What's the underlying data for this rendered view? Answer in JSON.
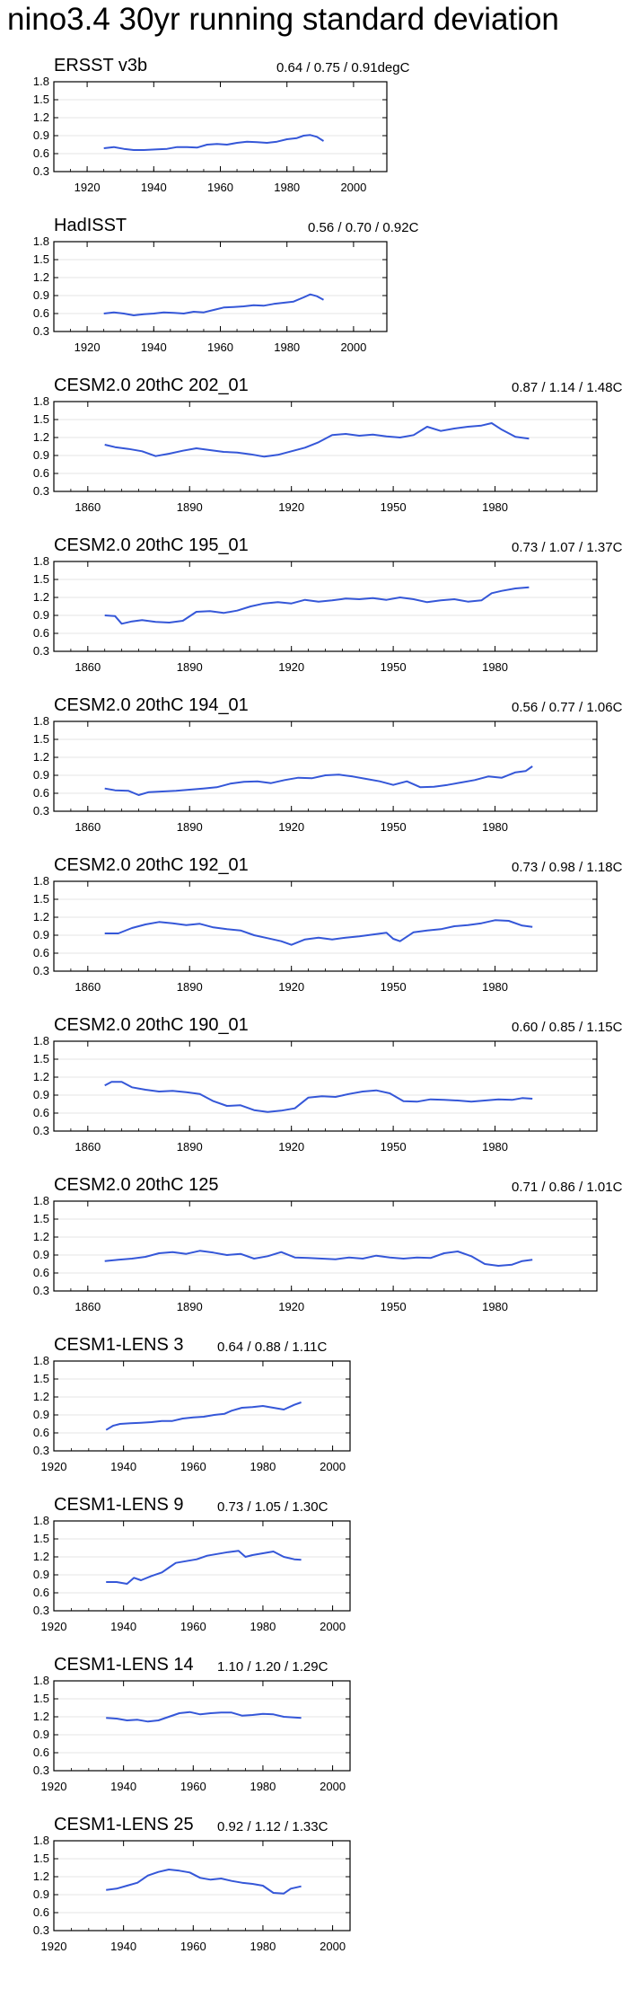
{
  "title": "nino3.4 30yr running standard deviation",
  "colors": {
    "line": "#3557d8",
    "grid": "#e4e4e4",
    "axis": "#000000"
  },
  "chart_data": [
    {
      "type": "line",
      "title": "ERSST v3b",
      "stats": "0.64 / 0.75 / 0.91degC",
      "xlim": [
        1910,
        2010
      ],
      "ylim": [
        0.3,
        1.8
      ],
      "x_ticks": [
        1920,
        1940,
        1960,
        1980,
        2000
      ],
      "y_ticks": [
        0.3,
        0.6,
        0.9,
        1.2,
        1.5,
        1.8
      ],
      "series": [
        {
          "name": "ERSST v3b",
          "x": [
            1925,
            1928,
            1931,
            1934,
            1937,
            1941,
            1944,
            1947,
            1950,
            1953,
            1956,
            1959,
            1962,
            1965,
            1968,
            1971,
            1974,
            1977,
            1980,
            1983,
            1985,
            1987,
            1989,
            1991
          ],
          "values": [
            0.69,
            0.71,
            0.68,
            0.66,
            0.66,
            0.67,
            0.68,
            0.71,
            0.71,
            0.7,
            0.75,
            0.76,
            0.75,
            0.78,
            0.8,
            0.79,
            0.78,
            0.8,
            0.84,
            0.86,
            0.9,
            0.91,
            0.88,
            0.81
          ]
        }
      ]
    },
    {
      "type": "line",
      "title": "HadISST",
      "stats": "0.56 / 0.70 / 0.92C",
      "xlim": [
        1910,
        2010
      ],
      "ylim": [
        0.3,
        1.8
      ],
      "x_ticks": [
        1920,
        1940,
        1960,
        1980,
        2000
      ],
      "y_ticks": [
        0.3,
        0.6,
        0.9,
        1.2,
        1.5,
        1.8
      ],
      "series": [
        {
          "name": "HadISST",
          "x": [
            1925,
            1928,
            1931,
            1934,
            1937,
            1940,
            1943,
            1946,
            1949,
            1952,
            1955,
            1958,
            1961,
            1964,
            1967,
            1970,
            1973,
            1976,
            1979,
            1982,
            1985,
            1987,
            1989,
            1991
          ],
          "values": [
            0.6,
            0.62,
            0.6,
            0.57,
            0.59,
            0.6,
            0.62,
            0.61,
            0.6,
            0.63,
            0.62,
            0.66,
            0.7,
            0.71,
            0.72,
            0.74,
            0.73,
            0.76,
            0.78,
            0.8,
            0.87,
            0.92,
            0.89,
            0.83
          ]
        }
      ]
    },
    {
      "type": "line",
      "title": "CESM2.0 20thC 202_01",
      "stats": "0.87 / 1.14 / 1.48C",
      "xlim": [
        1850,
        2010
      ],
      "ylim": [
        0.3,
        1.8
      ],
      "x_ticks": [
        1860,
        1890,
        1920,
        1950,
        1980
      ],
      "y_ticks": [
        0.3,
        0.6,
        0.9,
        1.2,
        1.5,
        1.8
      ],
      "series": [
        {
          "name": "202_01",
          "x": [
            1865,
            1868,
            1872,
            1876,
            1880,
            1884,
            1888,
            1892,
            1896,
            1900,
            1904,
            1908,
            1912,
            1916,
            1920,
            1924,
            1928,
            1932,
            1936,
            1940,
            1944,
            1948,
            1952,
            1956,
            1960,
            1964,
            1968,
            1972,
            1976,
            1979,
            1982,
            1986,
            1990
          ],
          "values": [
            1.08,
            1.04,
            1.01,
            0.97,
            0.89,
            0.93,
            0.98,
            1.02,
            0.99,
            0.96,
            0.95,
            0.92,
            0.88,
            0.91,
            0.97,
            1.03,
            1.12,
            1.24,
            1.26,
            1.23,
            1.25,
            1.22,
            1.2,
            1.24,
            1.38,
            1.31,
            1.35,
            1.38,
            1.4,
            1.44,
            1.33,
            1.21,
            1.18
          ]
        }
      ]
    },
    {
      "type": "line",
      "title": "CESM2.0 20thC 195_01",
      "stats": "0.73 / 1.07 / 1.37C",
      "xlim": [
        1850,
        2010
      ],
      "ylim": [
        0.3,
        1.8
      ],
      "x_ticks": [
        1860,
        1890,
        1920,
        1950,
        1980
      ],
      "y_ticks": [
        0.3,
        0.6,
        0.9,
        1.2,
        1.5,
        1.8
      ],
      "series": [
        {
          "name": "195_01",
          "x": [
            1865,
            1868,
            1870,
            1873,
            1876,
            1880,
            1884,
            1888,
            1892,
            1896,
            1900,
            1904,
            1908,
            1912,
            1916,
            1920,
            1924,
            1928,
            1932,
            1936,
            1940,
            1944,
            1948,
            1952,
            1956,
            1960,
            1964,
            1968,
            1972,
            1976,
            1979,
            1982,
            1986,
            1990
          ],
          "values": [
            0.9,
            0.89,
            0.76,
            0.8,
            0.82,
            0.79,
            0.78,
            0.81,
            0.96,
            0.97,
            0.94,
            0.98,
            1.05,
            1.1,
            1.12,
            1.1,
            1.16,
            1.13,
            1.15,
            1.18,
            1.17,
            1.19,
            1.16,
            1.2,
            1.17,
            1.12,
            1.15,
            1.17,
            1.13,
            1.15,
            1.27,
            1.31,
            1.35,
            1.37
          ]
        }
      ]
    },
    {
      "type": "line",
      "title": "CESM2.0 20thC 194_01",
      "stats": "0.56 / 0.77 / 1.06C",
      "xlim": [
        1850,
        2010
      ],
      "ylim": [
        0.3,
        1.8
      ],
      "x_ticks": [
        1860,
        1890,
        1920,
        1950,
        1980
      ],
      "y_ticks": [
        0.3,
        0.6,
        0.9,
        1.2,
        1.5,
        1.8
      ],
      "series": [
        {
          "name": "194_01",
          "x": [
            1865,
            1868,
            1872,
            1875,
            1878,
            1882,
            1886,
            1890,
            1894,
            1898,
            1902,
            1906,
            1910,
            1914,
            1918,
            1922,
            1926,
            1930,
            1934,
            1938,
            1942,
            1946,
            1950,
            1954,
            1958,
            1962,
            1966,
            1970,
            1974,
            1978,
            1982,
            1986,
            1989,
            1991
          ],
          "values": [
            0.68,
            0.65,
            0.64,
            0.57,
            0.62,
            0.63,
            0.64,
            0.66,
            0.68,
            0.7,
            0.76,
            0.79,
            0.8,
            0.77,
            0.82,
            0.86,
            0.85,
            0.9,
            0.91,
            0.88,
            0.84,
            0.8,
            0.74,
            0.8,
            0.7,
            0.71,
            0.74,
            0.78,
            0.82,
            0.88,
            0.86,
            0.95,
            0.97,
            1.05
          ]
        }
      ]
    },
    {
      "type": "line",
      "title": "CESM2.0 20thC 192_01",
      "stats": "0.73 / 0.98 / 1.18C",
      "xlim": [
        1850,
        2010
      ],
      "ylim": [
        0.3,
        1.8
      ],
      "x_ticks": [
        1860,
        1890,
        1920,
        1950,
        1980
      ],
      "y_ticks": [
        0.3,
        0.6,
        0.9,
        1.2,
        1.5,
        1.8
      ],
      "series": [
        {
          "name": "192_01",
          "x": [
            1865,
            1869,
            1873,
            1877,
            1881,
            1885,
            1889,
            1893,
            1897,
            1901,
            1905,
            1909,
            1913,
            1917,
            1920,
            1924,
            1928,
            1932,
            1936,
            1940,
            1944,
            1948,
            1950,
            1952,
            1956,
            1960,
            1964,
            1968,
            1972,
            1976,
            1980,
            1984,
            1988,
            1991
          ],
          "values": [
            0.93,
            0.93,
            1.02,
            1.08,
            1.12,
            1.1,
            1.07,
            1.09,
            1.03,
            1.0,
            0.98,
            0.9,
            0.85,
            0.8,
            0.74,
            0.83,
            0.86,
            0.83,
            0.86,
            0.88,
            0.91,
            0.94,
            0.84,
            0.8,
            0.95,
            0.98,
            1.0,
            1.05,
            1.07,
            1.1,
            1.15,
            1.14,
            1.06,
            1.04
          ]
        }
      ]
    },
    {
      "type": "line",
      "title": "CESM2.0 20thC 190_01",
      "stats": "0.60 / 0.85 / 1.15C",
      "xlim": [
        1850,
        2010
      ],
      "ylim": [
        0.3,
        1.8
      ],
      "x_ticks": [
        1860,
        1890,
        1920,
        1950,
        1980
      ],
      "y_ticks": [
        0.3,
        0.6,
        0.9,
        1.2,
        1.5,
        1.8
      ],
      "series": [
        {
          "name": "190_01",
          "x": [
            1865,
            1867,
            1870,
            1873,
            1877,
            1881,
            1885,
            1889,
            1893,
            1897,
            1901,
            1905,
            1909,
            1913,
            1917,
            1921,
            1925,
            1929,
            1933,
            1937,
            1941,
            1945,
            1949,
            1953,
            1957,
            1961,
            1965,
            1969,
            1973,
            1977,
            1981,
            1985,
            1988,
            1991
          ],
          "values": [
            1.06,
            1.12,
            1.12,
            1.03,
            0.99,
            0.96,
            0.97,
            0.95,
            0.92,
            0.8,
            0.72,
            0.73,
            0.65,
            0.62,
            0.64,
            0.68,
            0.86,
            0.88,
            0.87,
            0.92,
            0.96,
            0.98,
            0.93,
            0.8,
            0.79,
            0.83,
            0.82,
            0.81,
            0.79,
            0.81,
            0.83,
            0.82,
            0.85,
            0.84
          ]
        }
      ]
    },
    {
      "type": "line",
      "title": "CESM2.0 20thC 125",
      "stats": "0.71 / 0.86 / 1.01C",
      "xlim": [
        1850,
        2010
      ],
      "ylim": [
        0.3,
        1.8
      ],
      "x_ticks": [
        1860,
        1890,
        1920,
        1950,
        1980
      ],
      "y_ticks": [
        0.3,
        0.6,
        0.9,
        1.2,
        1.5,
        1.8
      ],
      "series": [
        {
          "name": "125",
          "x": [
            1865,
            1869,
            1873,
            1877,
            1881,
            1885,
            1889,
            1893,
            1897,
            1901,
            1905,
            1909,
            1913,
            1917,
            1921,
            1925,
            1929,
            1933,
            1937,
            1941,
            1945,
            1949,
            1953,
            1957,
            1961,
            1965,
            1969,
            1973,
            1977,
            1981,
            1985,
            1988,
            1991
          ],
          "values": [
            0.8,
            0.82,
            0.84,
            0.87,
            0.93,
            0.95,
            0.92,
            0.97,
            0.94,
            0.9,
            0.92,
            0.84,
            0.88,
            0.95,
            0.86,
            0.85,
            0.84,
            0.83,
            0.86,
            0.84,
            0.89,
            0.86,
            0.84,
            0.86,
            0.85,
            0.93,
            0.96,
            0.88,
            0.75,
            0.72,
            0.74,
            0.8,
            0.82
          ]
        }
      ]
    },
    {
      "type": "line",
      "title": "CESM1-LENS 3",
      "stats": "0.64 / 0.88 / 1.11C",
      "xlim": [
        1920,
        2005
      ],
      "ylim": [
        0.3,
        1.8
      ],
      "x_ticks": [
        1920,
        1940,
        1960,
        1980,
        2000
      ],
      "y_ticks": [
        0.3,
        0.6,
        0.9,
        1.2,
        1.5,
        1.8
      ],
      "series": [
        {
          "name": "LENS 3",
          "x": [
            1935,
            1937,
            1939,
            1942,
            1945,
            1948,
            1951,
            1954,
            1957,
            1960,
            1963,
            1966,
            1969,
            1971,
            1974,
            1977,
            1980,
            1983,
            1986,
            1989,
            1991
          ],
          "values": [
            0.65,
            0.72,
            0.75,
            0.76,
            0.77,
            0.78,
            0.8,
            0.8,
            0.84,
            0.86,
            0.87,
            0.9,
            0.92,
            0.97,
            1.02,
            1.03,
            1.05,
            1.02,
            0.99,
            1.07,
            1.11
          ]
        }
      ]
    },
    {
      "type": "line",
      "title": "CESM1-LENS 9",
      "stats": "0.73 / 1.05 / 1.30C",
      "xlim": [
        1920,
        2005
      ],
      "ylim": [
        0.3,
        1.8
      ],
      "x_ticks": [
        1920,
        1940,
        1960,
        1980,
        2000
      ],
      "y_ticks": [
        0.3,
        0.6,
        0.9,
        1.2,
        1.5,
        1.8
      ],
      "series": [
        {
          "name": "LENS 9",
          "x": [
            1935,
            1938,
            1941,
            1943,
            1945,
            1948,
            1951,
            1953,
            1955,
            1958,
            1961,
            1964,
            1967,
            1970,
            1973,
            1975,
            1977,
            1980,
            1983,
            1986,
            1989,
            1991
          ],
          "values": [
            0.78,
            0.78,
            0.75,
            0.85,
            0.81,
            0.88,
            0.94,
            1.02,
            1.1,
            1.13,
            1.16,
            1.22,
            1.25,
            1.28,
            1.3,
            1.2,
            1.23,
            1.26,
            1.29,
            1.2,
            1.16,
            1.15
          ]
        }
      ]
    },
    {
      "type": "line",
      "title": "CESM1-LENS 14",
      "stats": "1.10 / 1.20 / 1.29C",
      "xlim": [
        1920,
        2005
      ],
      "ylim": [
        0.3,
        1.8
      ],
      "x_ticks": [
        1920,
        1940,
        1960,
        1980,
        2000
      ],
      "y_ticks": [
        0.3,
        0.6,
        0.9,
        1.2,
        1.5,
        1.8
      ],
      "series": [
        {
          "name": "LENS 14",
          "x": [
            1935,
            1938,
            1941,
            1944,
            1947,
            1950,
            1953,
            1956,
            1959,
            1962,
            1965,
            1968,
            1971,
            1974,
            1977,
            1980,
            1983,
            1986,
            1989,
            1991
          ],
          "values": [
            1.18,
            1.17,
            1.14,
            1.15,
            1.12,
            1.14,
            1.2,
            1.26,
            1.28,
            1.24,
            1.26,
            1.27,
            1.27,
            1.22,
            1.23,
            1.25,
            1.24,
            1.2,
            1.19,
            1.18
          ]
        }
      ]
    },
    {
      "type": "line",
      "title": "CESM1-LENS 25",
      "stats": "0.92 / 1.12 / 1.33C",
      "xlim": [
        1920,
        2005
      ],
      "ylim": [
        0.3,
        1.8
      ],
      "x_ticks": [
        1920,
        1940,
        1960,
        1980,
        2000
      ],
      "y_ticks": [
        0.3,
        0.6,
        0.9,
        1.2,
        1.5,
        1.8
      ],
      "series": [
        {
          "name": "LENS 25",
          "x": [
            1935,
            1938,
            1941,
            1944,
            1947,
            1950,
            1953,
            1956,
            1959,
            1962,
            1965,
            1968,
            1971,
            1974,
            1977,
            1980,
            1983,
            1986,
            1988,
            1991
          ],
          "values": [
            0.98,
            1.0,
            1.05,
            1.1,
            1.22,
            1.28,
            1.32,
            1.3,
            1.27,
            1.18,
            1.15,
            1.17,
            1.13,
            1.1,
            1.08,
            1.05,
            0.93,
            0.92,
            1.0,
            1.04
          ]
        }
      ]
    }
  ]
}
